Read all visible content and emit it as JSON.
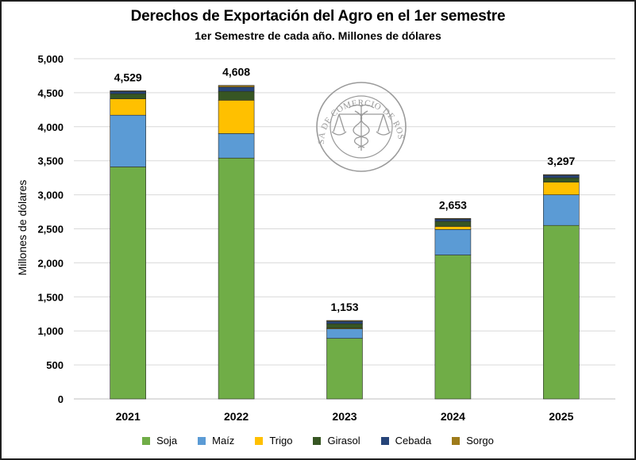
{
  "title": "Derechos de Exportación del Agro en el 1er semestre",
  "subtitle": "1er Semestre de cada año. Millones de dólares",
  "watermark": {
    "text": "BOLSA DE COMERCIO DE ROSARIO",
    "icon": "scales-of-justice-caduceus-seal"
  },
  "colors": {
    "Soja": "#70ad47",
    "Maíz": "#5b9bd5",
    "Trigo": "#ffc000",
    "Girasol": "#375623",
    "Cebada": "#264478",
    "Sorgo": "#9e7b1a"
  },
  "chart_data": {
    "type": "bar",
    "stacked": true,
    "categories": [
      "2021",
      "2022",
      "2023",
      "2024",
      "2025"
    ],
    "series": [
      {
        "name": "Soja",
        "values": [
          3410,
          3540,
          890,
          2115,
          2550
        ]
      },
      {
        "name": "Maíz",
        "values": [
          760,
          360,
          140,
          375,
          450
        ]
      },
      {
        "name": "Trigo",
        "values": [
          240,
          490,
          10,
          45,
          185
        ]
      },
      {
        "name": "Girasol",
        "values": [
          75,
          130,
          65,
          75,
          65
        ]
      },
      {
        "name": "Cebada",
        "values": [
          34,
          63,
          36,
          33,
          37
        ]
      },
      {
        "name": "Sorgo",
        "values": [
          10,
          25,
          12,
          10,
          10
        ]
      }
    ],
    "totals": [
      4529,
      4608,
      1153,
      2653,
      3297
    ],
    "total_labels": [
      "4,529",
      "4,608",
      "1,153",
      "2,653",
      "3,297"
    ],
    "ylabel": "Millones de dólares",
    "xlabel": "",
    "ylim": [
      0,
      5000
    ],
    "yticks": [
      0,
      500,
      1000,
      1500,
      2000,
      2500,
      3000,
      3500,
      4000,
      4500,
      5000
    ],
    "ytick_labels": [
      "0",
      "500",
      "1,000",
      "1,500",
      "2,000",
      "2,500",
      "3,000",
      "3,500",
      "4,000",
      "4,500",
      "5,000"
    ],
    "grid": true,
    "legend_position": "bottom"
  }
}
